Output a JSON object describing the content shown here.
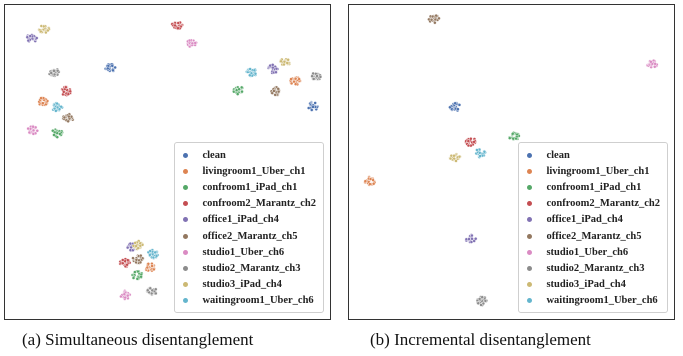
{
  "captions": {
    "a": "(a) Simultaneous disentanglement",
    "b": "(b) Incremental disentanglement"
  },
  "chart_data": [
    {
      "type": "scatter",
      "title": "",
      "xlabel": "",
      "ylabel": "",
      "legend": "bottom-right",
      "grid": false,
      "series": [
        {
          "name": "clean",
          "color": "#4c72b0",
          "points": [
            [
              105,
              63
            ],
            [
              308,
              101
            ]
          ]
        },
        {
          "name": "livingroom1_Uber_ch1",
          "color": "#dd8452",
          "points": [
            [
              38,
              96
            ],
            [
              290,
              76
            ],
            [
              145,
              262
            ]
          ]
        },
        {
          "name": "confroom1_iPad_ch1",
          "color": "#55a868",
          "points": [
            [
              52,
              128
            ],
            [
              233,
              85
            ],
            [
              132,
              270
            ]
          ]
        },
        {
          "name": "confroom2_Marantz_ch2",
          "color": "#c44e52",
          "points": [
            [
              172,
              20
            ],
            [
              61,
              86
            ],
            [
              120,
              258
            ]
          ]
        },
        {
          "name": "office1_iPad_ch4",
          "color": "#8172b3",
          "points": [
            [
              27,
              33
            ],
            [
              268,
              64
            ],
            [
              127,
              242
            ]
          ]
        },
        {
          "name": "office2_Marantz_ch5",
          "color": "#937860",
          "points": [
            [
              63,
              113
            ],
            [
              271,
              86
            ],
            [
              133,
              254
            ]
          ]
        },
        {
          "name": "studio1_Uber_ch6",
          "color": "#da8bc3",
          "points": [
            [
              186,
              38
            ],
            [
              28,
              125
            ],
            [
              120,
              290
            ]
          ]
        },
        {
          "name": "studio2_Marantz_ch3",
          "color": "#8c8c8c",
          "points": [
            [
              49,
              67
            ],
            [
              311,
              71
            ],
            [
              147,
              286
            ]
          ]
        },
        {
          "name": "studio3_iPad_ch4",
          "color": "#ccb974",
          "points": [
            [
              39,
              24
            ],
            [
              280,
              57
            ],
            [
              133,
              240
            ]
          ]
        },
        {
          "name": "waitingroom1_Uber_ch6",
          "color": "#64b5cd",
          "points": [
            [
              52,
              102
            ],
            [
              247,
              67
            ],
            [
              148,
              249
            ]
          ]
        }
      ]
    },
    {
      "type": "scatter",
      "title": "",
      "xlabel": "",
      "ylabel": "",
      "legend": "bottom-right",
      "grid": false,
      "series": [
        {
          "name": "clean",
          "color": "#4c72b0",
          "points": [
            [
              106,
              102
            ]
          ]
        },
        {
          "name": "livingroom1_Uber_ch1",
          "color": "#dd8452",
          "points": [
            [
              21,
              176
            ]
          ]
        },
        {
          "name": "confroom1_iPad_ch1",
          "color": "#55a868",
          "points": [
            [
              165,
              131
            ]
          ]
        },
        {
          "name": "confroom2_Marantz_ch2",
          "color": "#c44e52",
          "points": [
            [
              122,
              137
            ]
          ]
        },
        {
          "name": "office1_iPad_ch4",
          "color": "#8172b3",
          "points": [
            [
              122,
              234
            ]
          ]
        },
        {
          "name": "office2_Marantz_ch5",
          "color": "#937860",
          "points": [
            [
              85,
              14
            ]
          ]
        },
        {
          "name": "studio1_Uber_ch6",
          "color": "#da8bc3",
          "points": [
            [
              303,
              59
            ]
          ]
        },
        {
          "name": "studio2_Marantz_ch3",
          "color": "#8c8c8c",
          "points": [
            [
              133,
              296
            ]
          ]
        },
        {
          "name": "studio3_iPad_ch4",
          "color": "#ccb974",
          "points": [
            [
              106,
              152
            ]
          ]
        },
        {
          "name": "waitingroom1_Uber_ch6",
          "color": "#64b5cd",
          "points": [
            [
              131,
              148
            ]
          ]
        }
      ]
    }
  ]
}
